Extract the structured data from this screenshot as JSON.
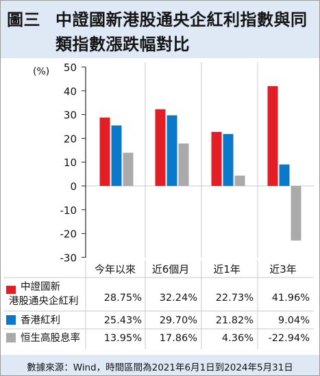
{
  "title": {
    "number": "圖三",
    "line1": "中證國新港股通央企紅利指數與同",
    "line2": "類指數漲跌幅對比"
  },
  "footer": "數據來源：Wind，時間區間為2021年6月1日到2024年5月31日",
  "chart_data": {
    "type": "bar",
    "ylabel": "(%)",
    "ylim": [
      -30,
      50
    ],
    "yticks": [
      50,
      40,
      30,
      20,
      10,
      0,
      -10,
      -20,
      -30
    ],
    "negative_tick_color": "#e41e25",
    "categories": [
      "今年以來",
      "近6個月",
      "近1年",
      "近3年"
    ],
    "series": [
      {
        "name_lines": [
          "中證國新",
          "港股通央企紅利"
        ],
        "color": "#e41e25",
        "values": [
          28.75,
          32.24,
          22.73,
          41.96
        ],
        "labels": [
          "28.75%",
          "32.24%",
          "22.73%",
          "41.96%"
        ]
      },
      {
        "name_lines": [
          "香港紅利"
        ],
        "color": "#0a79c9",
        "values": [
          25.43,
          29.7,
          21.82,
          9.04
        ],
        "labels": [
          "25.43%",
          "29.70%",
          "21.82%",
          "9.04%"
        ]
      },
      {
        "name_lines": [
          "恒生高股息率"
        ],
        "color": "#aaaaaa",
        "values": [
          13.95,
          17.86,
          4.36,
          -22.94
        ],
        "labels": [
          "13.95%",
          "17.86%",
          "4.36%",
          "-22.94%"
        ]
      }
    ]
  }
}
